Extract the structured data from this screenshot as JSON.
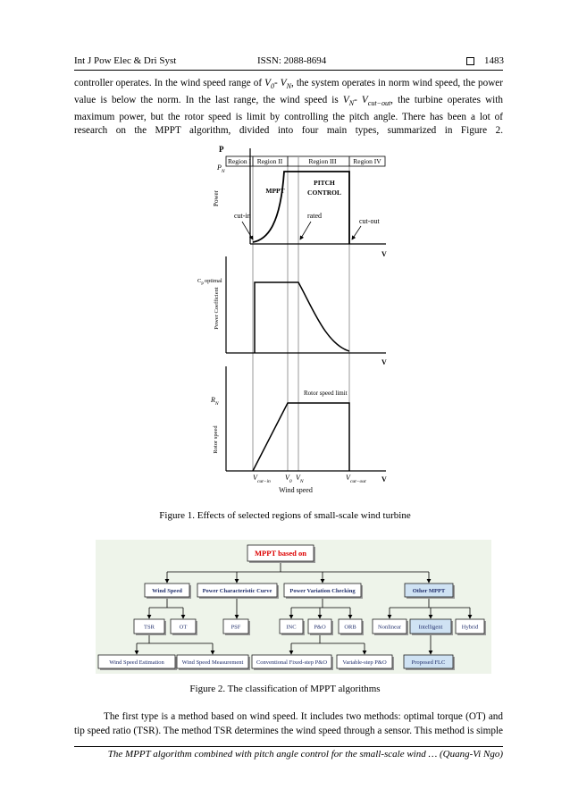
{
  "header": {
    "journal": "Int J Pow Elec & Dri Syst",
    "issn": "ISSN: 2088-8694",
    "page": "1483"
  },
  "paragraphs": [
    [
      "controller operates. In the wind speed range of ",
      "V",
      "0",
      "- ",
      "V",
      "N",
      ", the system operates in norm wind speed, the power value is below the norm. In the last range, the wind speed is ",
      "V",
      "N",
      "- ",
      "V",
      "cut−out",
      ", the turbine operates with maximum power, but the rotor speed is limit by controlling the pitch angle. There has been a lot of research on the MPPT algorithm, divided into four main types, summarized in Figure 2."
    ],
    [
      "The first type is a method based on wind speed. It includes two methods: optimal torque (OT) and tip speed ratio (TSR). The method TSR determines the wind speed through a sensor. This method is simple"
    ]
  ],
  "figure1": {
    "regions": [
      "Region I",
      "Region II",
      "Region III",
      "Region IV"
    ],
    "power_axis": "P",
    "rated_power": [
      "P",
      "N"
    ],
    "power_label": "Power",
    "mppt": "MPPT",
    "pitch_control": [
      "PITCH",
      "CONTROL"
    ],
    "cut_in": "cut-in",
    "rated": "rated",
    "cut_out": "cut-out",
    "v_axis": "V",
    "cp_optimal": [
      "C",
      "p",
      "optimal"
    ],
    "cp_label": "Power Coefficient",
    "rated_speed": [
      "R",
      "N"
    ],
    "rotor_limit": "Rotor speed limit",
    "rotor_label": "Rotor speed",
    "x_labels": {
      "v_cut_in": [
        "V",
        "cut−in"
      ],
      "v0": [
        "V",
        "0"
      ],
      "vn": [
        "V",
        "N"
      ],
      "v_cut_out": [
        "V",
        "cut−out"
      ]
    },
    "wind_speed": "Wind speed",
    "caption": "Figure 1. Effects of selected regions of small-scale wind turbine"
  },
  "figure2": {
    "nodes": [
      "MPPT based on",
      "Wind Speed",
      "Power Characteristic Curve",
      "Power Variation Checking",
      "Other MPPT",
      "TSR",
      "OT",
      "PSF",
      "INC",
      "P&O",
      "ORB",
      "Nonlinear",
      "Intelligent",
      "Hybrid",
      "Wind Speed Estimation",
      "Wind Speed Measurement",
      "Conventional Fixed-step P&O",
      "Variable-step P&O",
      "Proposed FLC"
    ],
    "caption": "Figure 2. The classification of MPPT algorithms"
  },
  "footer": "The MPPT algorithm combined with pitch angle control for the small-scale wind … (Quang-Vi Ngo)"
}
